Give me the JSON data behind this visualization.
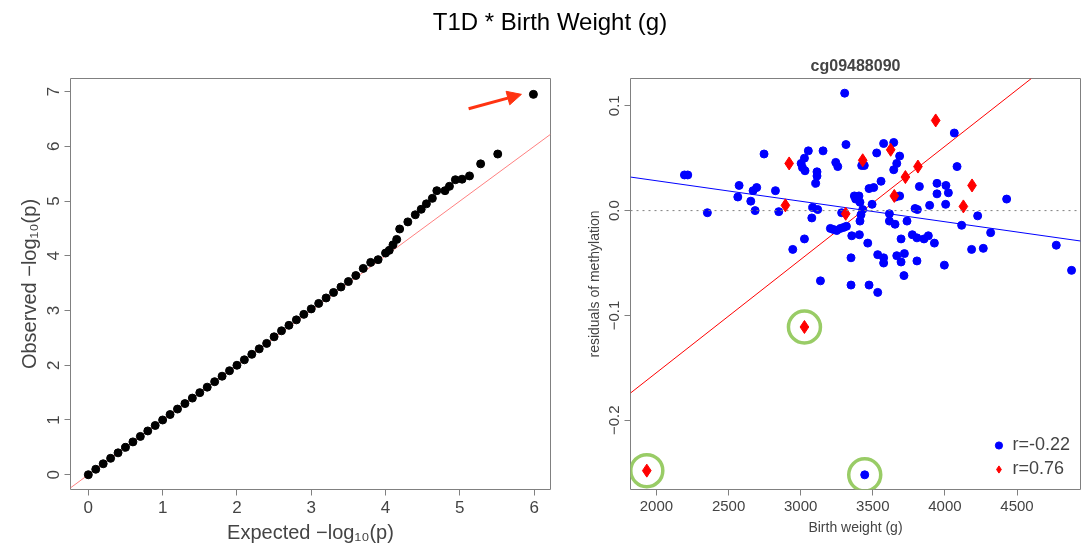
{
  "chart_data": [
    {
      "type": "scatter",
      "title": "T1D * Birth Weight (g)",
      "xlabel": "Expected −log₁₀(p)",
      "ylabel": "Observed −log₁₀(p)",
      "xlim": [
        -0.24,
        6.22
      ],
      "ylim": [
        -0.27,
        7.24
      ],
      "xticks": [
        0,
        1,
        2,
        3,
        4,
        5,
        6
      ],
      "yticks": [
        0,
        1,
        2,
        3,
        4,
        5,
        6,
        7
      ],
      "grid": false,
      "series": [
        {
          "type": "line",
          "color": "#ff8080",
          "x": [
            -0.24,
            6.22
          ],
          "values": [
            -0.24,
            6.22
          ]
        },
        {
          "color": "#000000",
          "marker": "circle",
          "x": [
            0,
            0.1,
            0.2,
            0.3,
            0.4,
            0.5,
            0.6,
            0.7,
            0.8,
            0.9,
            1.0,
            1.1,
            1.2,
            1.3,
            1.4,
            1.5,
            1.6,
            1.7,
            1.8,
            1.9,
            2.0,
            2.1,
            2.2,
            2.3,
            2.4,
            2.5,
            2.6,
            2.7,
            2.8,
            2.9,
            3.0,
            3.1,
            3.2,
            3.3,
            3.4,
            3.5,
            3.6,
            3.7,
            3.8,
            3.9,
            4.0,
            4.05,
            4.1,
            4.15,
            4.19,
            4.3,
            4.4,
            4.48,
            4.55,
            4.63,
            4.69,
            4.8,
            4.86,
            4.94,
            5.03,
            5.13,
            5.28,
            5.51,
            5.99
          ],
          "values": [
            0,
            0.1,
            0.2,
            0.3,
            0.4,
            0.5,
            0.6,
            0.7,
            0.8,
            0.9,
            1.0,
            1.1,
            1.2,
            1.3,
            1.4,
            1.5,
            1.6,
            1.7,
            1.8,
            1.9,
            2.0,
            2.1,
            2.2,
            2.3,
            2.4,
            2.52,
            2.63,
            2.73,
            2.83,
            2.93,
            3.03,
            3.13,
            3.23,
            3.33,
            3.43,
            3.53,
            3.64,
            3.77,
            3.88,
            3.93,
            4.05,
            4.1,
            4.2,
            4.3,
            4.49,
            4.62,
            4.75,
            4.85,
            4.95,
            5.05,
            5.19,
            5.19,
            5.27,
            5.39,
            5.4,
            5.46,
            5.68,
            5.86,
            6.95
          ]
        }
      ]
    },
    {
      "type": "scatter",
      "title": "cg09488090",
      "xlabel": "Birth weight (g)",
      "ylabel": "residuals of methylation",
      "xlim": [
        1820,
        4940
      ],
      "ylim": [
        -0.266,
        0.126
      ],
      "xticks": [
        2000,
        2500,
        3000,
        3500,
        4000,
        4500
      ],
      "yticks": [
        -0.2,
        -0.1,
        {
          "value": 0,
          "label": "0.0"
        },
        0.1
      ],
      "grid": false,
      "legend": "bottom right",
      "ref_lines": [
        {
          "axis": "y",
          "value": 0,
          "color": "#808080",
          "line_style": "dotted"
        }
      ],
      "series": [
        {
          "type": "line",
          "color": "#0000ff",
          "x": [
            1820,
            4940
          ],
          "values": [
            0.032,
            -0.029
          ]
        },
        {
          "type": "line",
          "color": "#ff0000",
          "x": [
            1820,
            4599
          ],
          "values": [
            -0.174,
            0.126
          ]
        },
        {
          "name": "r=-0.22",
          "color": "#0000ff",
          "marker": "circle",
          "x": [
            3305,
            3314,
            2746,
            2194,
            2217,
            3053,
            3026,
            3003,
            3012,
            3030,
            3113,
            3113,
            3104,
            3155,
            3243,
            3257,
            3575,
            3645,
            3527,
            3686,
            3666,
            3645,
            3557,
            3423,
            3441,
            2573,
            2564,
            2654,
            2670,
            2695,
            2684,
            2825,
            2848,
            2353,
            3083,
            3118,
            3077,
            2945,
            3026,
            3137,
            3349,
            3474,
            3534,
            3349,
            3354,
            3407,
            3465,
            3534,
            3575,
            3575,
            3666,
            3696,
            3719,
            3716,
            3806,
            3696,
            3774,
            3806,
            3855,
            3885,
            3927,
            3996,
            3737,
            3654,
            3615,
            3615,
            3411,
            3418,
            3430,
            3495,
            3372,
            3404,
            3381,
            3411,
            3474,
            3506,
            3206,
            3227,
            3250,
            3275,
            3298,
            3317,
            3284,
            3659,
            3686,
            3823,
            3793,
            3809,
            3894,
            3945,
            3945,
            4007,
            4024,
            4005,
            4084,
            4065,
            4116,
            4227,
            4317,
            4185,
            4266,
            4428,
            4772,
            4878,
            3444
          ],
          "values": [
            0.112,
            0.063,
            0.054,
            0.034,
            0.034,
            0.057,
            0.05,
            0.045,
            0.041,
            0.038,
            0.037,
            0.033,
            0.026,
            0.057,
            0.046,
            0.042,
            0.064,
            0.065,
            0.055,
            0.052,
            0.045,
            0.039,
            0.028,
            0.043,
            0.043,
            0.024,
            0.013,
            0.009,
            0.019,
            0.022,
            0.0,
            0.019,
            -0.001,
            -0.002,
            0.003,
            0.001,
            -0.007,
            -0.037,
            -0.027,
            -0.067,
            -0.071,
            -0.071,
            -0.078,
            -0.045,
            -0.024,
            -0.023,
            -0.031,
            -0.042,
            -0.045,
            -0.05,
            -0.043,
            -0.049,
            -0.041,
            -0.062,
            -0.048,
            -0.027,
            -0.023,
            -0.026,
            -0.027,
            -0.024,
            -0.031,
            -0.052,
            -0.01,
            -0.013,
            -0.01,
            -0.003,
            -0.01,
            -0.004,
            0.001,
            0.006,
            0.014,
            0.014,
            0.011,
            0.008,
            0.021,
            0.022,
            -0.017,
            -0.018,
            -0.019,
            -0.017,
            -0.016,
            -0.015,
            -0.002,
            0.013,
            0.014,
            0.023,
            0.002,
            0.001,
            0.005,
            0.026,
            0.016,
            0.024,
            0.017,
            0.006,
            0.042,
            0.074,
            -0.014,
            -0.005,
            -0.021,
            -0.037,
            -0.036,
            0.011,
            -0.033,
            -0.057,
            -0.252
          ]
        },
        {
          "name": "r=0.76",
          "color": "#ff0000",
          "marker": "diamond",
          "x": [
            2920,
            2894,
            3312,
            3430,
            3624,
            3936,
            3813,
            3726,
            3649,
            4188,
            4128,
            3026,
            1933
          ],
          "values": [
            0.045,
            0.005,
            -0.003,
            0.048,
            0.058,
            0.086,
            0.042,
            0.032,
            0.014,
            0.024,
            0.004,
            -0.111,
            -0.248
          ]
        },
        {
          "color": "#99cc66",
          "marker": "circle",
          "line_style": "solid",
          "x": [
            3026,
            1933,
            3444
          ],
          "values": [
            -0.111,
            -0.248,
            -0.252
          ]
        }
      ]
    }
  ]
}
